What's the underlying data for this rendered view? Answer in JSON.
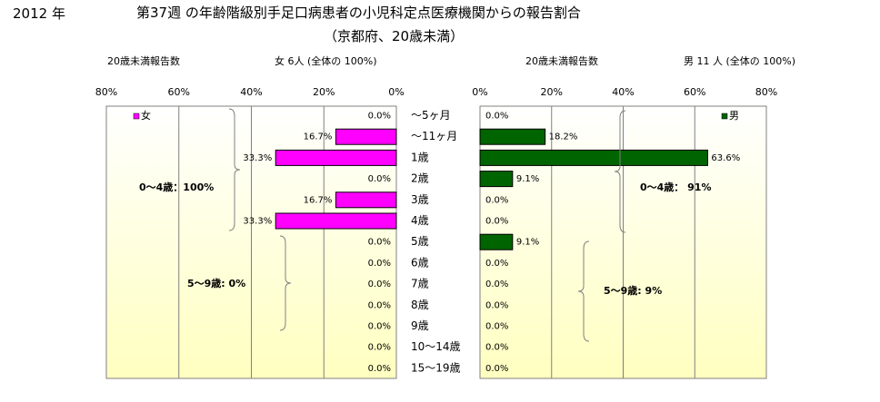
{
  "header": {
    "year": "2012 年",
    "title": "第37週 の年齢階級別手足口病患者の小児科定点医療機関からの報告割合",
    "subtitle": "（京都府、20歳未満）"
  },
  "colors": {
    "female": "#ff00ff",
    "male": "#006400",
    "grid": "#808080",
    "plot_gradient_top": "#ffffff",
    "plot_gradient_bottom": "#ffffc0"
  },
  "chart_data": [
    {
      "type": "bar",
      "orientation": "horizontal",
      "direction": "right-to-left",
      "header_left": "20歳未満報告数",
      "header_right": "女  6人  (全体の   100%)",
      "legend": "女",
      "legend_position": "top-left",
      "x_ticks": [
        "80%",
        "60%",
        "40%",
        "20%",
        "0%"
      ],
      "xlim": [
        0,
        80
      ],
      "categories": [
        "～5ヶ月",
        "～11ヶ月",
        "1歳",
        "2歳",
        "3歳",
        "4歳",
        "5歳",
        "6歳",
        "7歳",
        "8歳",
        "9歳",
        "10～14歳",
        "15～19歳"
      ],
      "values": [
        0.0,
        16.7,
        33.3,
        0.0,
        16.7,
        33.3,
        0.0,
        0.0,
        0.0,
        0.0,
        0.0,
        0.0,
        0.0
      ],
      "value_labels": [
        "0.0%",
        "16.7%",
        "33.3%",
        "0.0%",
        "16.7%",
        "33.3%",
        "0.0%",
        "0.0%",
        "0.0%",
        "0.0%",
        "0.0%",
        "0.0%",
        "0.0%"
      ],
      "annotations": [
        "0～4歳：100%",
        "5～9歳:   0%"
      ]
    },
    {
      "type": "bar",
      "orientation": "horizontal",
      "direction": "left-to-right",
      "header_left": "20歳未満報告数",
      "header_right": "男  11 人  (全体の   100%)",
      "legend": "男",
      "legend_position": "top-right",
      "x_ticks": [
        "0%",
        "20%",
        "40%",
        "60%",
        "80%"
      ],
      "xlim": [
        0,
        80
      ],
      "categories": [
        "～5ヶ月",
        "～11ヶ月",
        "1歳",
        "2歳",
        "3歳",
        "4歳",
        "5歳",
        "6歳",
        "7歳",
        "8歳",
        "9歳",
        "10～14歳",
        "15～19歳"
      ],
      "values": [
        0.0,
        18.2,
        63.6,
        9.1,
        0.0,
        0.0,
        9.1,
        0.0,
        0.0,
        0.0,
        0.0,
        0.0,
        0.0
      ],
      "value_labels": [
        "0.0%",
        "18.2%",
        "63.6%",
        "9.1%",
        "0.0%",
        "0.0%",
        "9.1%",
        "0.0%",
        "0.0%",
        "0.0%",
        "0.0%",
        "0.0%",
        "0.0%"
      ],
      "annotations": [
        "0～4歳：  91%",
        "5～9歳:    9%"
      ]
    }
  ]
}
